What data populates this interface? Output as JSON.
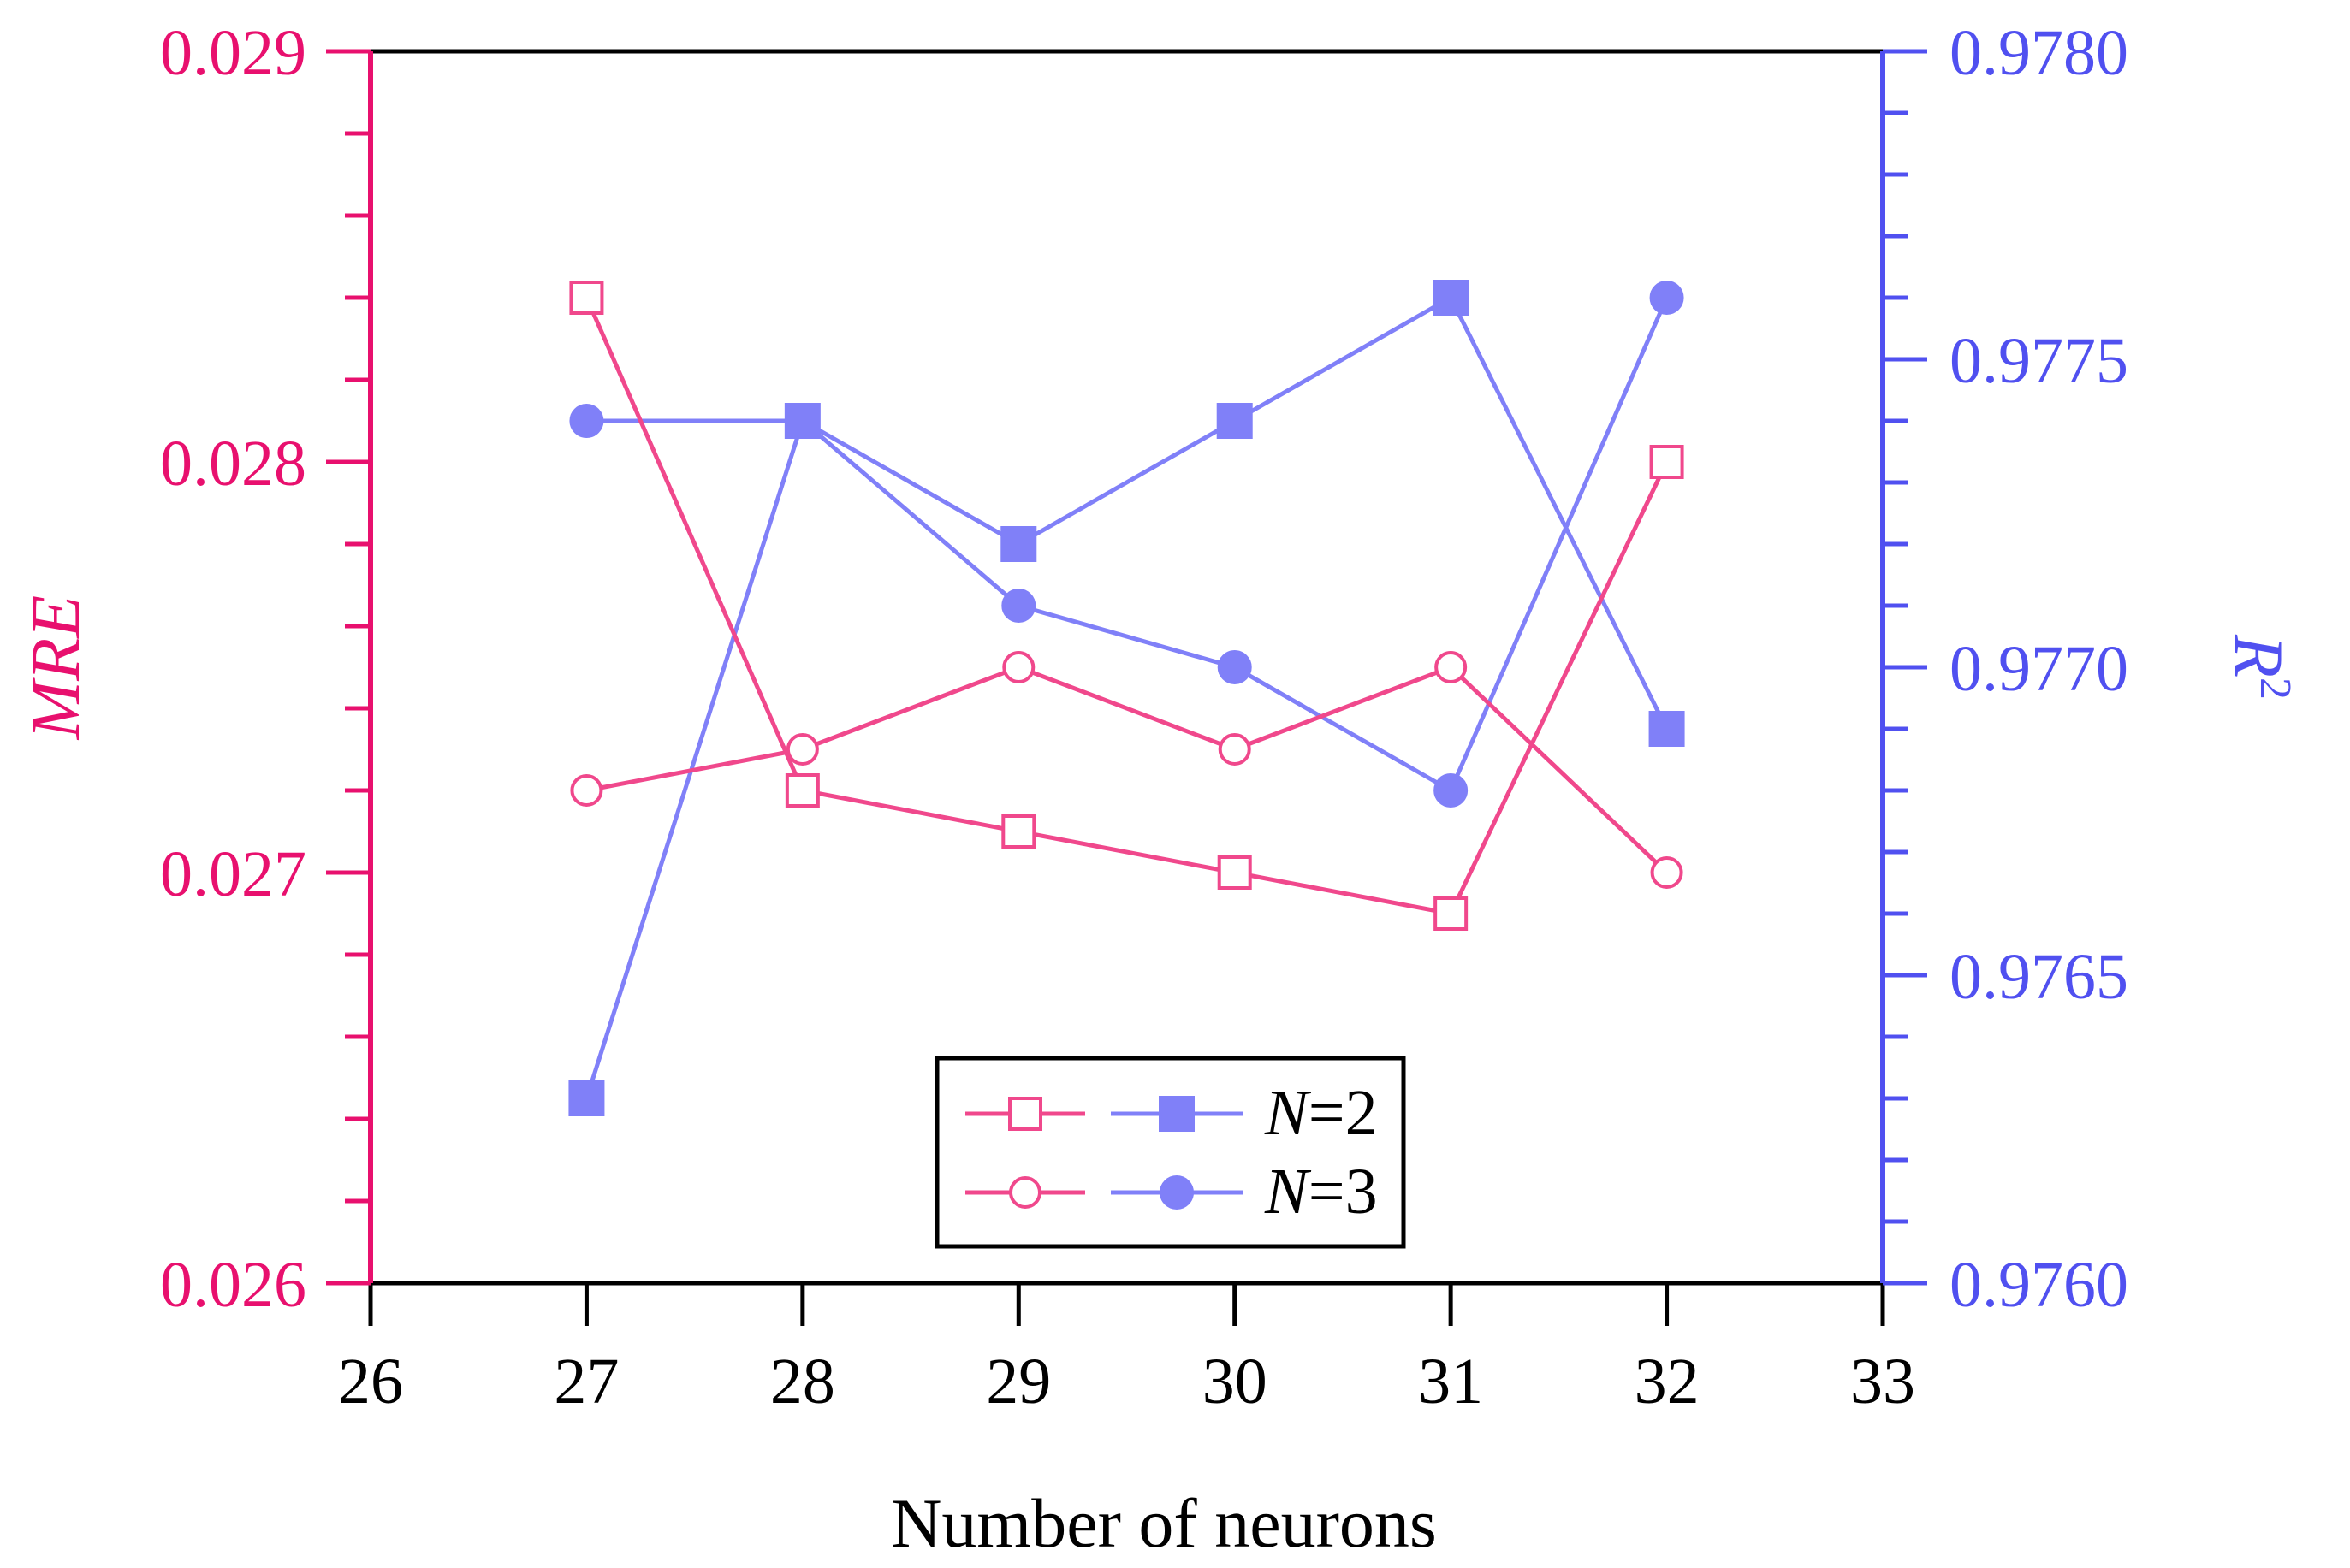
{
  "chart_data": {
    "type": "line",
    "title": "",
    "xlabel": "Number of neurons",
    "ylabel_left": "MRE",
    "ylabel_right": "R",
    "ylabel_right_sup": "2",
    "x_ticks": [
      "26",
      "27",
      "28",
      "29",
      "30",
      "31",
      "32",
      "33"
    ],
    "y_left_ticks": [
      "0.026",
      "0.027",
      "0.028",
      "0.029"
    ],
    "y_right_ticks": [
      "0.9760",
      "0.9765",
      "0.9770",
      "0.9775",
      "0.9780"
    ],
    "xlim": [
      26,
      33
    ],
    "ylim_left": [
      0.026,
      0.029
    ],
    "ylim_right": [
      0.976,
      0.978
    ],
    "x": [
      27,
      28,
      29,
      30,
      31,
      32
    ],
    "series": [
      {
        "name": "MRE N=2",
        "axis": "left",
        "marker": "square-open",
        "color": "#f0488c",
        "values": [
          0.0284,
          0.0272,
          0.0271,
          0.027,
          0.0269,
          0.028
        ]
      },
      {
        "name": "MRE N=3",
        "axis": "left",
        "marker": "circle-open",
        "color": "#f0488c",
        "values": [
          0.0272,
          0.0273,
          0.0275,
          0.0273,
          0.0275,
          0.027
        ]
      },
      {
        "name": "R2 N=2",
        "axis": "right",
        "marker": "square-filled",
        "color": "#8080f8",
        "values": [
          0.9763,
          0.9774,
          0.9772,
          0.9774,
          0.9776,
          0.9769
        ]
      },
      {
        "name": "R2 N=3",
        "axis": "right",
        "marker": "circle-filled",
        "color": "#8080f8",
        "values": [
          0.9774,
          0.9774,
          0.9771,
          0.977,
          0.9768,
          0.9776
        ]
      }
    ],
    "legend": {
      "position": "bottom-center",
      "entries": [
        {
          "n_label": "N",
          "value_label": "=2"
        },
        {
          "n_label": "N",
          "value_label": "=3"
        }
      ]
    }
  },
  "colors": {
    "left_axis": "#e8106e",
    "right_axis": "#5050f0",
    "mre_line": "#f0488c",
    "r2_line": "#8080f8",
    "frame": "#000000"
  }
}
